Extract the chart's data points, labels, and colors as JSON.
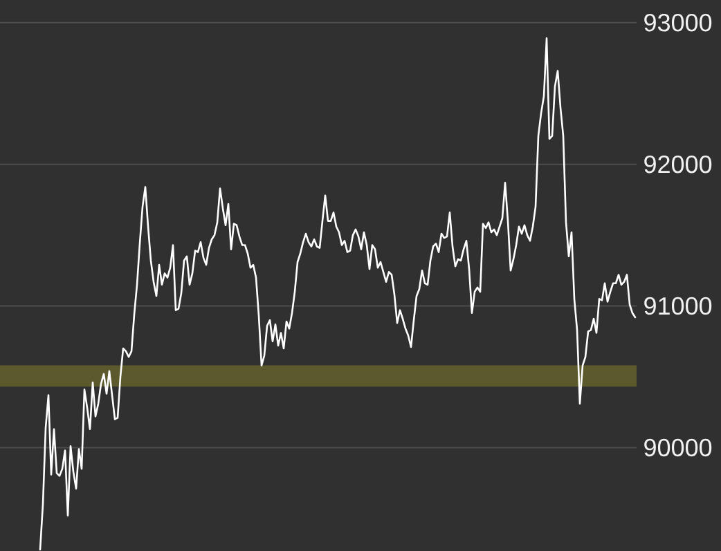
{
  "chart_data": {
    "type": "line",
    "categories": [
      null,
      null,
      null,
      null,
      null,
      null,
      null,
      null,
      null,
      null,
      null,
      null,
      null,
      null,
      null,
      null,
      null,
      null,
      null,
      null,
      null,
      null,
      null,
      null,
      null,
      null,
      null,
      null,
      null,
      null,
      null,
      null,
      null,
      null,
      null,
      null,
      null,
      null,
      null,
      null,
      null,
      null,
      null,
      null,
      null,
      null,
      null,
      null,
      null,
      null,
      null,
      null,
      null,
      null,
      null,
      null,
      null,
      null,
      null,
      null,
      null,
      null,
      null,
      null,
      null,
      null,
      null,
      null,
      null,
      null,
      null,
      null,
      null,
      null,
      null,
      null,
      null,
      null,
      null,
      null,
      null,
      null,
      null,
      null,
      null,
      null,
      null,
      null,
      null,
      null,
      null,
      null,
      null,
      null,
      null,
      null,
      null,
      null,
      null,
      null,
      null,
      null,
      null,
      null,
      null,
      null,
      null,
      null,
      null,
      null,
      null,
      null,
      null,
      null,
      null,
      null,
      null,
      null,
      null,
      null,
      null,
      null,
      null,
      null,
      null,
      null,
      null,
      null,
      null,
      null,
      null,
      null,
      null,
      null,
      null,
      null,
      null,
      null,
      null,
      null,
      null,
      null,
      null,
      null,
      null,
      null,
      null,
      null,
      null,
      null,
      null,
      null,
      null,
      null,
      null,
      null,
      null,
      null,
      null,
      null,
      null,
      null,
      null,
      null,
      null,
      null,
      null,
      null,
      null,
      null,
      null,
      null,
      null,
      null,
      null,
      null,
      null,
      null,
      null,
      null,
      null,
      null,
      null,
      null,
      null,
      null,
      null,
      null,
      null,
      null,
      null,
      null,
      null,
      null,
      null,
      null,
      null,
      null,
      null,
      null,
      null,
      null,
      null,
      null,
      null,
      null,
      null,
      null,
      null,
      null,
      null,
      null,
      null,
      null,
      null,
      null,
      null,
      null,
      null,
      null,
      null,
      null,
      null,
      null,
      null,
      null,
      null,
      null,
      null,
      null
    ],
    "series": [
      {
        "color": "#ffffff",
        "values": [
          null,
          null,
          null,
          null,
          null,
          null,
          null,
          null,
          null,
          null,
          null,
          null,
          null,
          null,
          89280,
          89600,
          90140,
          90370,
          89810,
          90130,
          89820,
          89800,
          89850,
          89980,
          89520,
          90010,
          89830,
          89710,
          89990,
          89850,
          90410,
          90280,
          90130,
          90460,
          90220,
          90310,
          90450,
          90520,
          90380,
          90540,
          90370,
          90200,
          90210,
          90500,
          90700,
          90680,
          90640,
          90680,
          90940,
          91150,
          91440,
          91700,
          91840,
          91560,
          91320,
          91170,
          91070,
          91290,
          91150,
          91230,
          91200,
          91270,
          91430,
          90970,
          90980,
          91090,
          91320,
          91350,
          91150,
          91230,
          91390,
          91380,
          91450,
          91340,
          91290,
          91410,
          91470,
          91500,
          91590,
          91830,
          91690,
          91570,
          91720,
          91400,
          91580,
          91570,
          91490,
          91430,
          91430,
          91370,
          91270,
          91290,
          91200,
          90930,
          90580,
          90650,
          90860,
          90900,
          90750,
          90870,
          90720,
          90810,
          90700,
          90890,
          90840,
          90950,
          91100,
          91310,
          91370,
          91450,
          91510,
          91450,
          91420,
          91470,
          91420,
          91410,
          91600,
          91780,
          91600,
          91600,
          91660,
          91560,
          91520,
          91430,
          91460,
          91380,
          91390,
          91500,
          91540,
          91490,
          91400,
          91520,
          91430,
          91260,
          91430,
          91400,
          91270,
          91310,
          91240,
          91170,
          91240,
          91220,
          91080,
          90880,
          90970,
          90910,
          90840,
          90790,
          90710,
          90900,
          91070,
          91120,
          91250,
          91160,
          91150,
          91320,
          91420,
          91440,
          91380,
          91510,
          91480,
          91490,
          91660,
          91420,
          91280,
          91330,
          91320,
          91400,
          91460,
          91260,
          90950,
          91100,
          91130,
          91100,
          91580,
          91550,
          91590,
          91520,
          91540,
          91500,
          91560,
          91620,
          91870,
          91600,
          91250,
          91330,
          91430,
          91560,
          91510,
          91570,
          91500,
          91460,
          91560,
          91700,
          92200,
          92360,
          92480,
          92890,
          92180,
          92200,
          92550,
          92660,
          92400,
          92200,
          91590,
          91350,
          91520,
          91050,
          90830,
          90310,
          90580,
          90640,
          90820,
          90830,
          90910,
          90810,
          91050,
          91040,
          91160,
          91030,
          91100,
          91160,
          91160,
          91220,
          91150,
          91170,
          91220,
          91010,
          90950,
          90920
        ]
      }
    ],
    "ylim": [
      89270,
      93160
    ],
    "yticks": [
      90000,
      91000,
      92000,
      93000
    ],
    "grid": "y",
    "bands": [
      {
        "axis": "y",
        "from": 90430,
        "to": 90580,
        "color": "#5c5a2c"
      }
    ]
  }
}
